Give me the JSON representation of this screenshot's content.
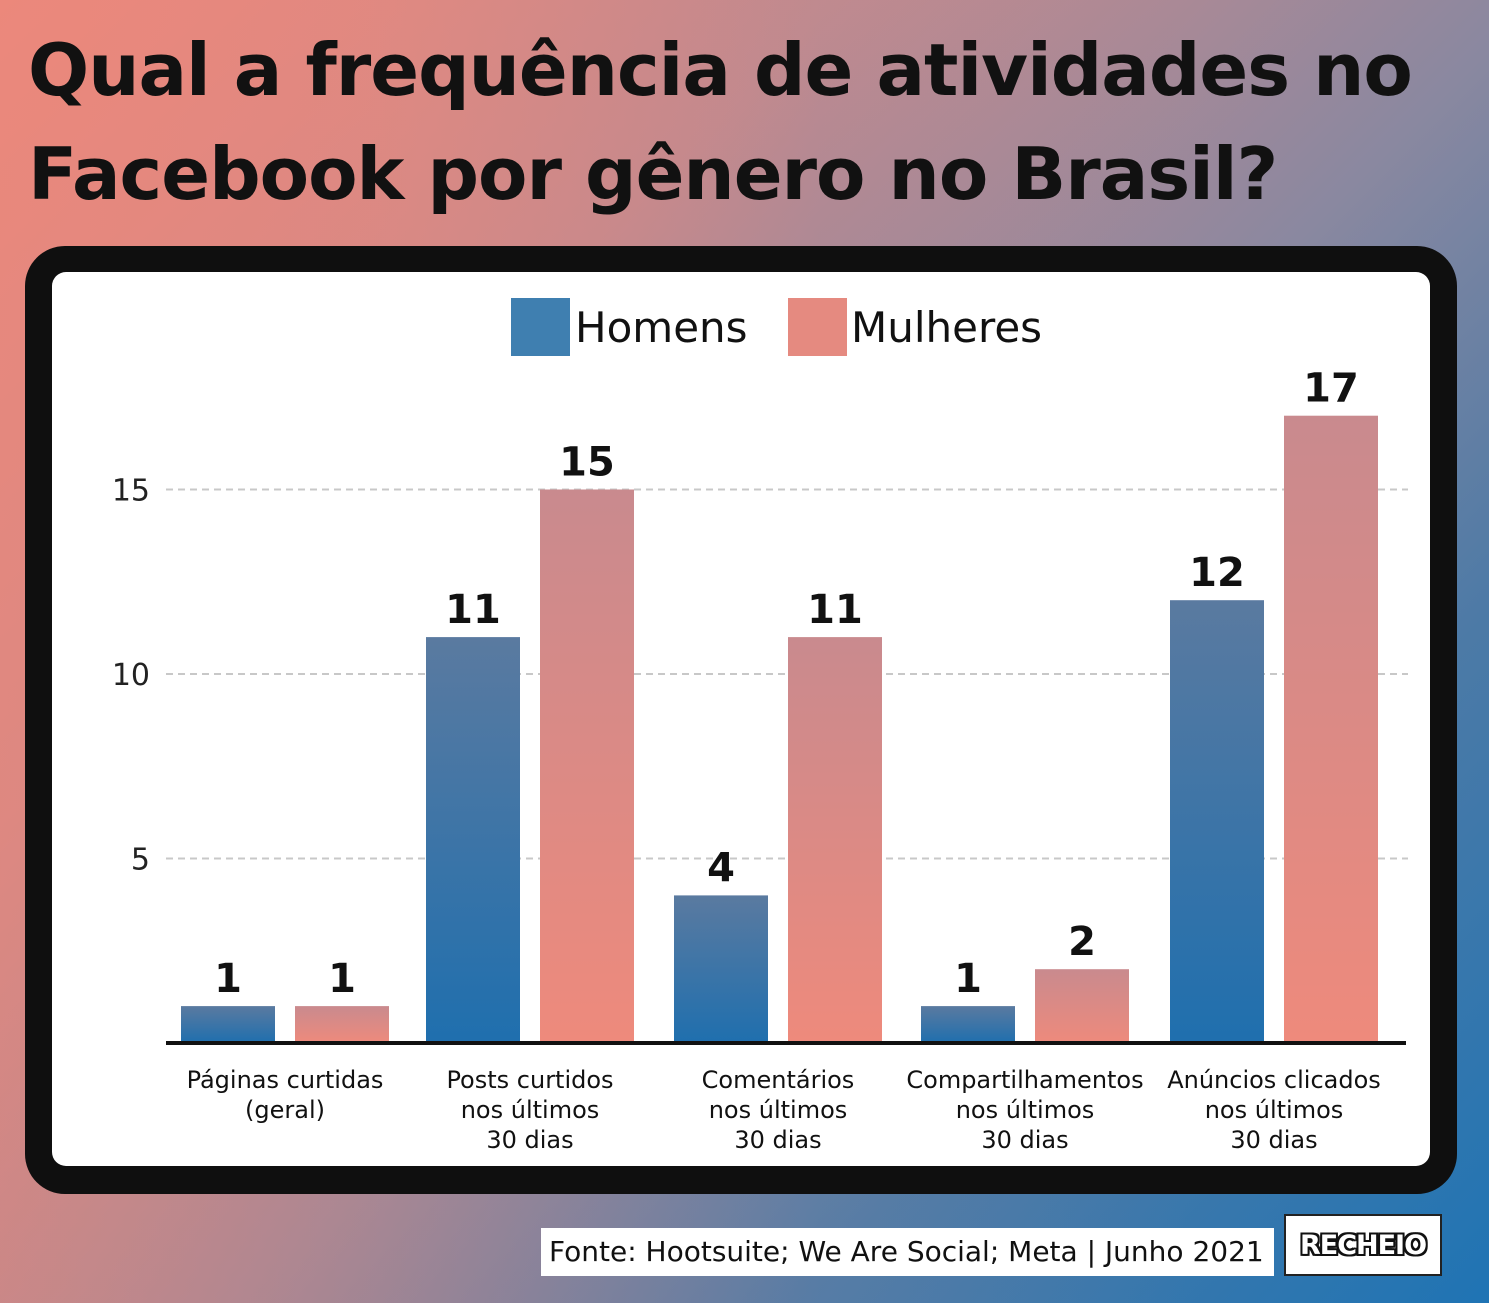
{
  "title": "Qual a frequência de atividades no Facebook por gênero no Brasil?",
  "title_lines": [
    "Qual a frequência de atividades no",
    "Facebook por gênero no Brasil?"
  ],
  "colors": {
    "homens": "#3f7fb0",
    "mulheres": "#e58a80",
    "frame": "#0f0f0f",
    "gridline": "#c8c8c8"
  },
  "chart_data": {
    "type": "bar",
    "categories": [
      [
        "Páginas curtidas",
        "(geral)"
      ],
      [
        "Posts curtidos",
        "nos últimos",
        "30 dias"
      ],
      [
        "Comentários",
        "nos últimos",
        "30 dias"
      ],
      [
        "Compartilhamentos",
        "nos últimos",
        "30 dias"
      ],
      [
        "Anúncios clicados",
        "nos últimos",
        "30 dias"
      ]
    ],
    "series": [
      {
        "name": "Homens",
        "values": [
          1,
          11,
          4,
          1,
          12
        ]
      },
      {
        "name": "Mulheres",
        "values": [
          1,
          15,
          11,
          2,
          17
        ]
      }
    ],
    "yticks": [
      5,
      10,
      15
    ],
    "ylim": [
      0,
      18
    ],
    "grid": true,
    "legend": "top-center"
  },
  "footer": {
    "source": "Fonte: Hootsuite; We Are Social; Meta | Junho 2021",
    "logo": "RECHEIO"
  }
}
